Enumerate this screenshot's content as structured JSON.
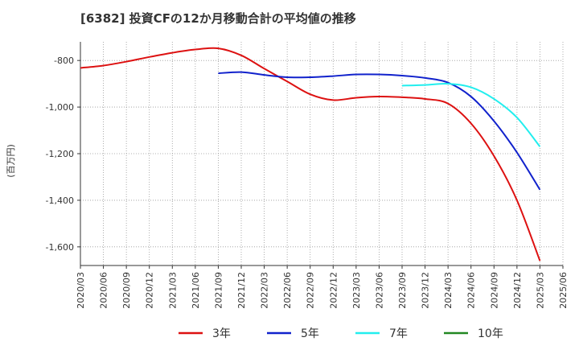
{
  "chart_data": {
    "type": "line",
    "title": "[6382]  投資CFの12か月移動合計の平均値の推移",
    "ylabel": "(百万円)",
    "xlabel": "",
    "ylim": [
      -1680,
      -720
    ],
    "yticks": [
      -800,
      -1000,
      -1200,
      -1400,
      -1600
    ],
    "ytick_labels": [
      "-800",
      "-1,000",
      "-1,200",
      "-1,400",
      "-1,600"
    ],
    "xtick_labels": [
      "2020/03",
      "2020/06",
      "2020/09",
      "2020/12",
      "2021/03",
      "2021/06",
      "2021/09",
      "2021/12",
      "2022/03",
      "2022/06",
      "2022/09",
      "2022/12",
      "2023/03",
      "2023/06",
      "2023/09",
      "2023/12",
      "2024/03",
      "2024/06",
      "2024/09",
      "2024/12",
      "2025/03",
      "2025/06"
    ],
    "grid": true,
    "legend_position": "bottom",
    "series": [
      {
        "name": "3年",
        "color": "#dd1111",
        "points": [
          [
            "2020/03",
            -832
          ],
          [
            "2020/06",
            -822
          ],
          [
            "2020/09",
            -805
          ],
          [
            "2020/12",
            -785
          ],
          [
            "2021/03",
            -767
          ],
          [
            "2021/06",
            -753
          ],
          [
            "2021/09",
            -748
          ],
          [
            "2021/12",
            -778
          ],
          [
            "2022/03",
            -835
          ],
          [
            "2022/06",
            -890
          ],
          [
            "2022/09",
            -945
          ],
          [
            "2022/12",
            -970
          ],
          [
            "2023/03",
            -960
          ],
          [
            "2023/06",
            -955
          ],
          [
            "2023/09",
            -958
          ],
          [
            "2023/12",
            -965
          ],
          [
            "2024/03",
            -985
          ],
          [
            "2024/06",
            -1070
          ],
          [
            "2024/09",
            -1210
          ],
          [
            "2024/12",
            -1400
          ],
          [
            "2025/03",
            -1660
          ]
        ]
      },
      {
        "name": "5年",
        "color": "#1122cc",
        "points": [
          [
            "2021/09",
            -855
          ],
          [
            "2021/12",
            -850
          ],
          [
            "2022/03",
            -862
          ],
          [
            "2022/06",
            -872
          ],
          [
            "2022/09",
            -872
          ],
          [
            "2022/12",
            -867
          ],
          [
            "2023/03",
            -860
          ],
          [
            "2023/06",
            -860
          ],
          [
            "2023/09",
            -865
          ],
          [
            "2023/12",
            -875
          ],
          [
            "2024/03",
            -895
          ],
          [
            "2024/06",
            -955
          ],
          [
            "2024/09",
            -1060
          ],
          [
            "2024/12",
            -1195
          ],
          [
            "2025/03",
            -1355
          ]
        ]
      },
      {
        "name": "7年",
        "color": "#22eeee",
        "points": [
          [
            "2023/09",
            -908
          ],
          [
            "2023/12",
            -905
          ],
          [
            "2024/03",
            -900
          ],
          [
            "2024/06",
            -915
          ],
          [
            "2024/09",
            -965
          ],
          [
            "2024/12",
            -1045
          ],
          [
            "2025/03",
            -1170
          ]
        ]
      },
      {
        "name": "10年",
        "color": "#228822",
        "points": []
      }
    ]
  }
}
